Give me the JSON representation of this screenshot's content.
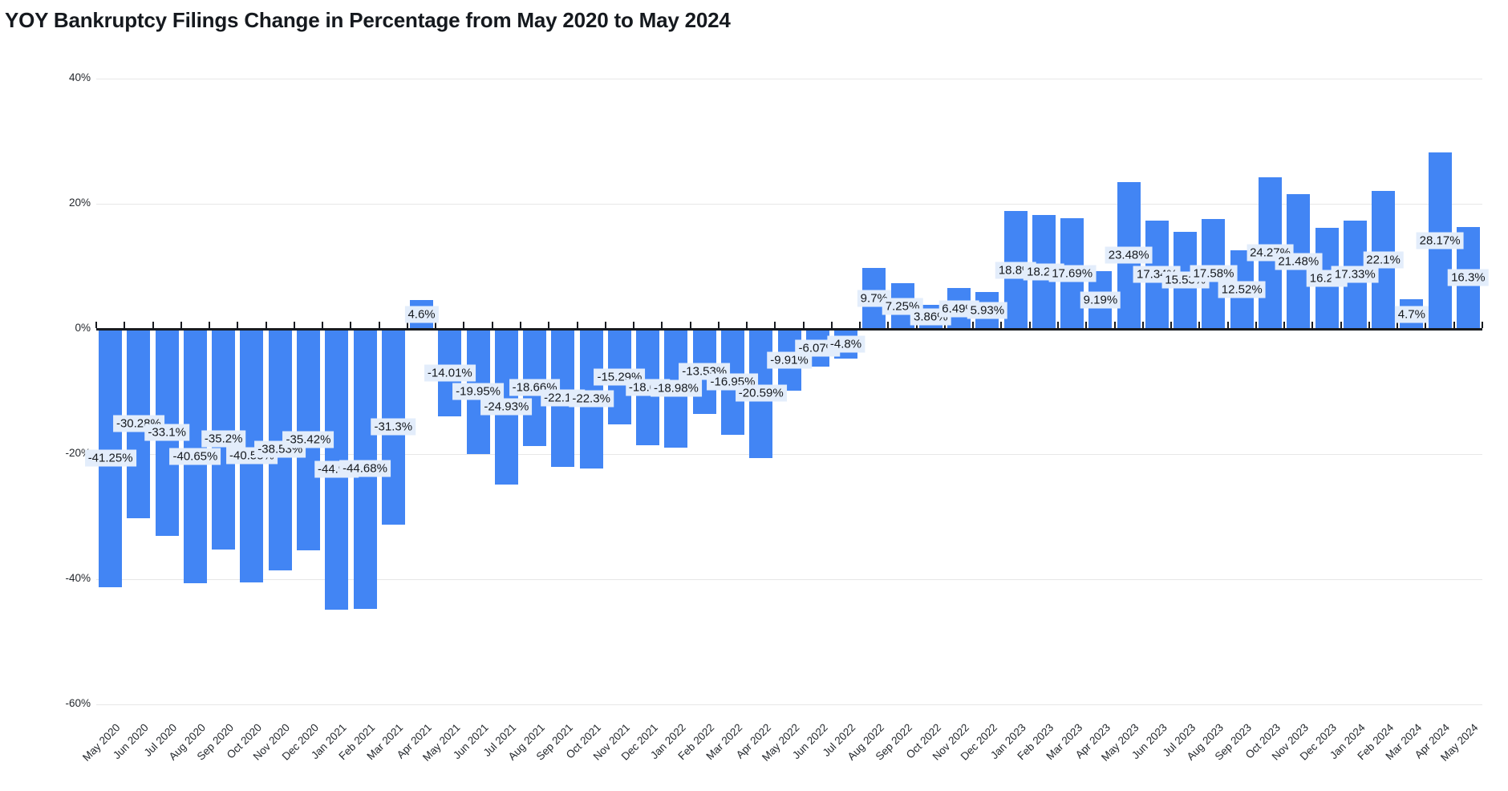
{
  "chart_data": {
    "type": "bar",
    "title": "YOY Bankruptcy Filings Change in Percentage from May 2020 to May 2024",
    "x": [
      "May 2020",
      "Jun 2020",
      "Jul 2020",
      "Aug 2020",
      "Sep 2020",
      "Oct 2020",
      "Nov 2020",
      "Dec 2020",
      "Jan 2021",
      "Feb 2021",
      "Mar 2021",
      "Apr 2021",
      "May 2021",
      "Jun 2021",
      "Jul 2021",
      "Aug 2021",
      "Sep 2021",
      "Oct 2021",
      "Nov 2021",
      "Dec 2021",
      "Jan 2022",
      "Feb 2022",
      "Mar 2022",
      "Apr 2022",
      "May 2022",
      "Jun 2022",
      "Jul 2022",
      "Aug 2022",
      "Sep 2022",
      "Oct 2022",
      "Nov 2022",
      "Dec 2022",
      "Jan 2023",
      "Feb 2023",
      "Mar 2023",
      "Apr 2023",
      "May 2023",
      "Jun 2023",
      "Jul 2023",
      "Aug 2023",
      "Sep 2023",
      "Oct 2023",
      "Nov 2023",
      "Dec 2023",
      "Jan 2024",
      "Feb 2024",
      "Mar 2024",
      "Apr 2024",
      "May 2024"
    ],
    "values": [
      -41.25,
      -30.28,
      -33.1,
      -40.65,
      -35.2,
      -40.55,
      -38.53,
      -35.42,
      -44.9,
      -44.68,
      -31.3,
      4.6,
      -14.01,
      -19.95,
      -24.93,
      -18.66,
      -22.1,
      -22.3,
      -15.29,
      -18.6,
      -18.98,
      -13.53,
      -16.95,
      -20.59,
      -9.91,
      -6.07,
      -4.8,
      9.7,
      7.25,
      3.86,
      6.49,
      5.93,
      18.8,
      18.2,
      17.69,
      9.19,
      23.48,
      17.34,
      15.53,
      17.58,
      12.52,
      24.27,
      21.48,
      16.2,
      17.33,
      22.1,
      4.7,
      28.17,
      16.3
    ],
    "point_labels": [
      "-41.25%",
      "-30.28%",
      "-33.1%",
      "-40.65%",
      "-35.2%",
      "-40.55%",
      "-38.53%",
      "-35.42%",
      "-44.9%",
      "-44.68%",
      "-31.3%",
      "4.6%",
      "-14.01%",
      "-19.95%",
      "-24.93%",
      "-18.66%",
      "-22.1%",
      "-22.3%",
      "-15.29%",
      "-18.6%",
      "-18.98%",
      "-13.53%",
      "-16.95%",
      "-20.59%",
      "-9.91%",
      "-6.07%",
      "-4.8%",
      "9.7%",
      "7.25%",
      "3.86%",
      "6.49%",
      "5.93%",
      "18.8%",
      "18.2%",
      "17.69%",
      "9.19%",
      "23.48%",
      "17.34%",
      "15.53%",
      "17.58%",
      "12.52%",
      "24.27%",
      "21.48%",
      "16.2%",
      "17.33%",
      "22.1%",
      "4.7%",
      "28.17%",
      "16.3%"
    ],
    "xlabel": "",
    "ylabel": "",
    "y_axis": {
      "tick_labels": [
        "40%",
        "20%",
        "0%",
        "-20%",
        "-40%",
        "-60%"
      ],
      "tick_values": [
        40,
        20,
        0,
        -20,
        -40,
        -60
      ],
      "ylim": [
        -60,
        40
      ]
    },
    "grid": true,
    "legend": "none",
    "colors": {
      "bar": "#4285f4",
      "value_label_bg": "#e3edfb",
      "zero_line": "#181b20",
      "gridline": "#e7e7e7",
      "axis_text": "#24282d",
      "title_text": "#15191e"
    }
  }
}
